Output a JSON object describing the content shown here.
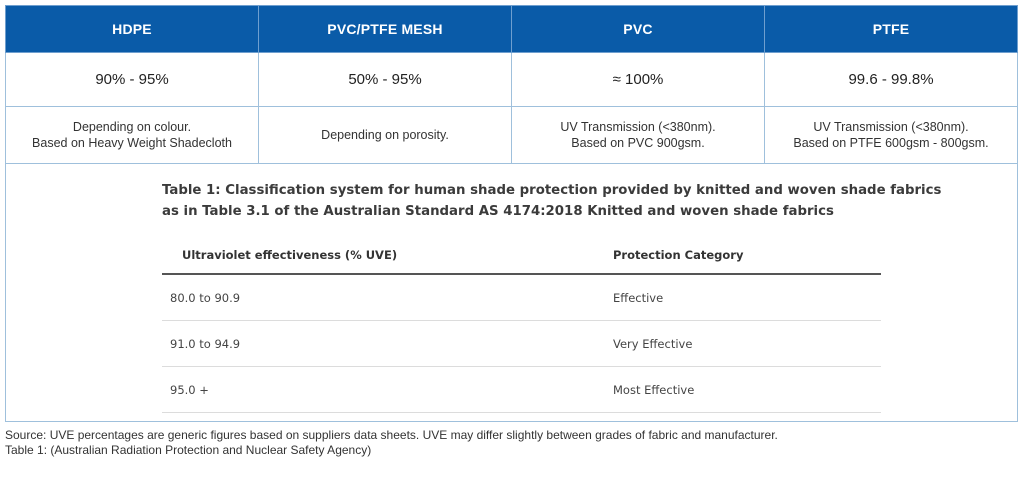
{
  "headers": [
    "HDPE",
    "PVC/PTFE MESH",
    "PVC",
    "PTFE"
  ],
  "percentages": [
    "90% - 95%",
    "50% - 95%",
    "≈ 100%",
    "99.6 - 99.8%"
  ],
  "notes": [
    [
      "Depending on colour.",
      "Based on Heavy Weight Shadecloth"
    ],
    [
      "Depending on porosity.",
      ""
    ],
    [
      "UV Transmission (<380nm).",
      "Based on PVC 900gsm."
    ],
    [
      "UV Transmission (<380nm).",
      "Based on PTFE 600gsm - 800gsm."
    ]
  ],
  "classification": {
    "title_line1": "Table 1: Classification system for human shade protection provided by knitted and woven shade fabrics",
    "title_line2": "as in Table 3.1 of the Australian Standard AS 4174:2018 Knitted and woven shade fabrics",
    "columns": [
      "Ultraviolet effectiveness (% UVE)",
      "Protection Category"
    ],
    "rows": [
      [
        "80.0 to 90.9",
        "Effective"
      ],
      [
        "91.0 to 94.9",
        "Very Effective"
      ],
      [
        "95.0 +",
        "Most Effective"
      ]
    ]
  },
  "footer": {
    "source": "Source: UVE percentages are generic figures based on suppliers data sheets. UVE may differ slightly between grades of fabric and manufacturer.",
    "table_credit": "Table 1: (Australian Radiation Protection and Nuclear Safety Agency)"
  }
}
